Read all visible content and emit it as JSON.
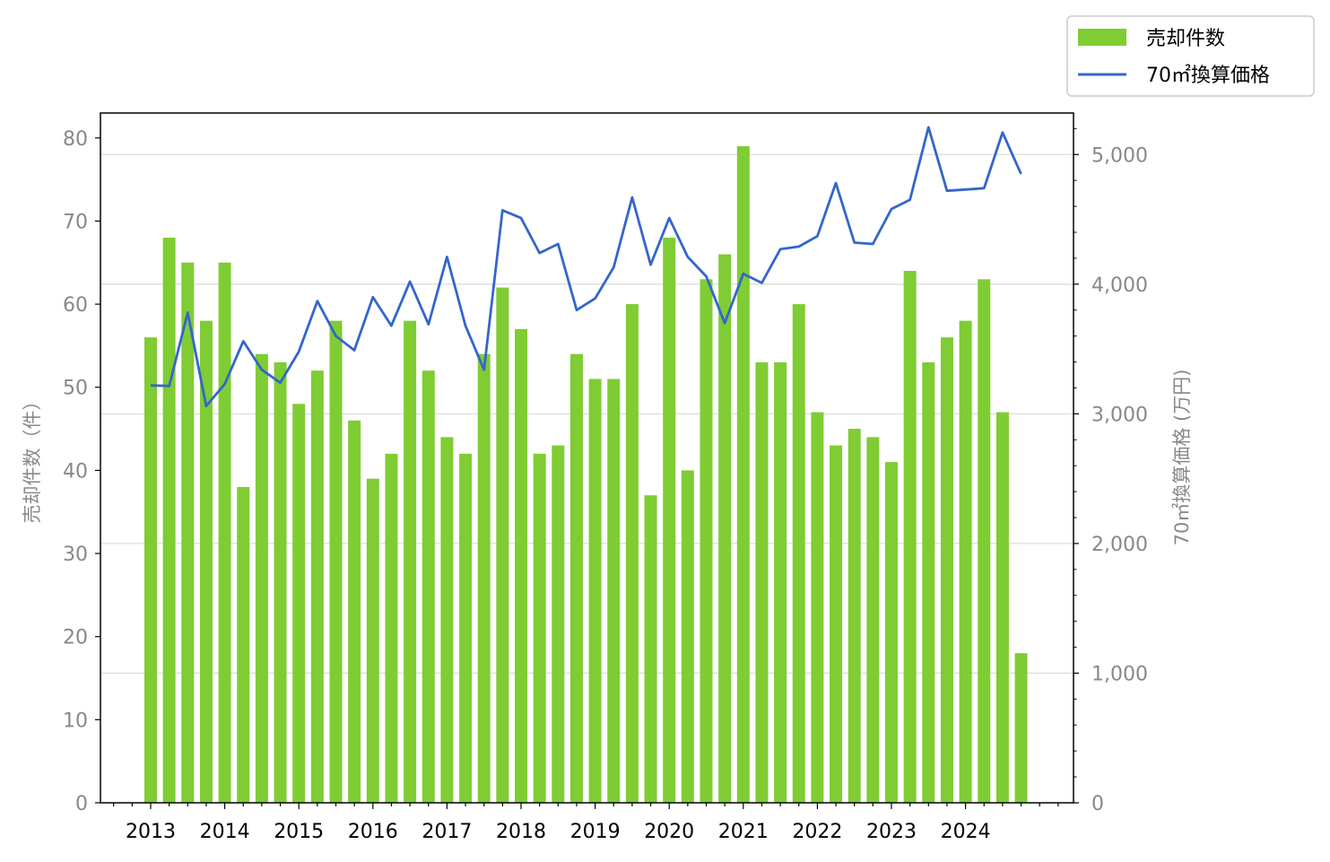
{
  "chart_data": {
    "type": "bar",
    "legend_placement": "top-right (outside plot)",
    "grid": "horizontal, right axis",
    "x_tick_labels": [
      "2013",
      "2014",
      "2015",
      "2016",
      "2017",
      "2018",
      "2019",
      "2020",
      "2021",
      "2022",
      "2023",
      "2024"
    ],
    "periods_per_year": 4,
    "start_year": 2013,
    "y_left": {
      "label": "売却件数（件）",
      "ylim": [
        0,
        83
      ],
      "ticks": [
        0,
        10,
        20,
        30,
        40,
        50,
        60,
        70,
        80
      ]
    },
    "y_right": {
      "label": "70㎡換算価格 (万円)",
      "ylim": [
        0,
        5320
      ],
      "ticks": [
        0,
        1000,
        2000,
        3000,
        4000,
        5000
      ],
      "tick_labels": [
        "0",
        "1,000",
        "2,000",
        "3,000",
        "4,000",
        "5,000"
      ]
    },
    "series": [
      {
        "name": "売却件数",
        "type": "bar",
        "axis": "left",
        "color": "#7fcc33",
        "values": [
          56,
          68,
          65,
          58,
          65,
          38,
          54,
          53,
          48,
          52,
          58,
          46,
          39,
          42,
          58,
          52,
          44,
          42,
          54,
          62,
          57,
          42,
          43,
          54,
          51,
          51,
          60,
          37,
          68,
          40,
          63,
          66,
          79,
          53,
          53,
          60,
          47,
          43,
          45,
          44,
          41,
          64,
          53,
          56,
          58,
          63,
          47,
          18
        ]
      },
      {
        "name": "70㎡換算価格",
        "type": "line",
        "axis": "right",
        "color": "#3366cc",
        "values": [
          3220,
          3215,
          3780,
          3060,
          3230,
          3560,
          3340,
          3240,
          3480,
          3870,
          3600,
          3490,
          3900,
          3680,
          4020,
          3690,
          4210,
          3680,
          3340,
          4570,
          4510,
          4240,
          4310,
          3800,
          3890,
          4130,
          4670,
          4150,
          4510,
          4210,
          4060,
          3700,
          4080,
          4010,
          4270,
          4290,
          4370,
          4780,
          4320,
          4310,
          4580,
          4650,
          5210,
          4720,
          4730,
          4740,
          5170,
          4850
        ]
      }
    ]
  }
}
